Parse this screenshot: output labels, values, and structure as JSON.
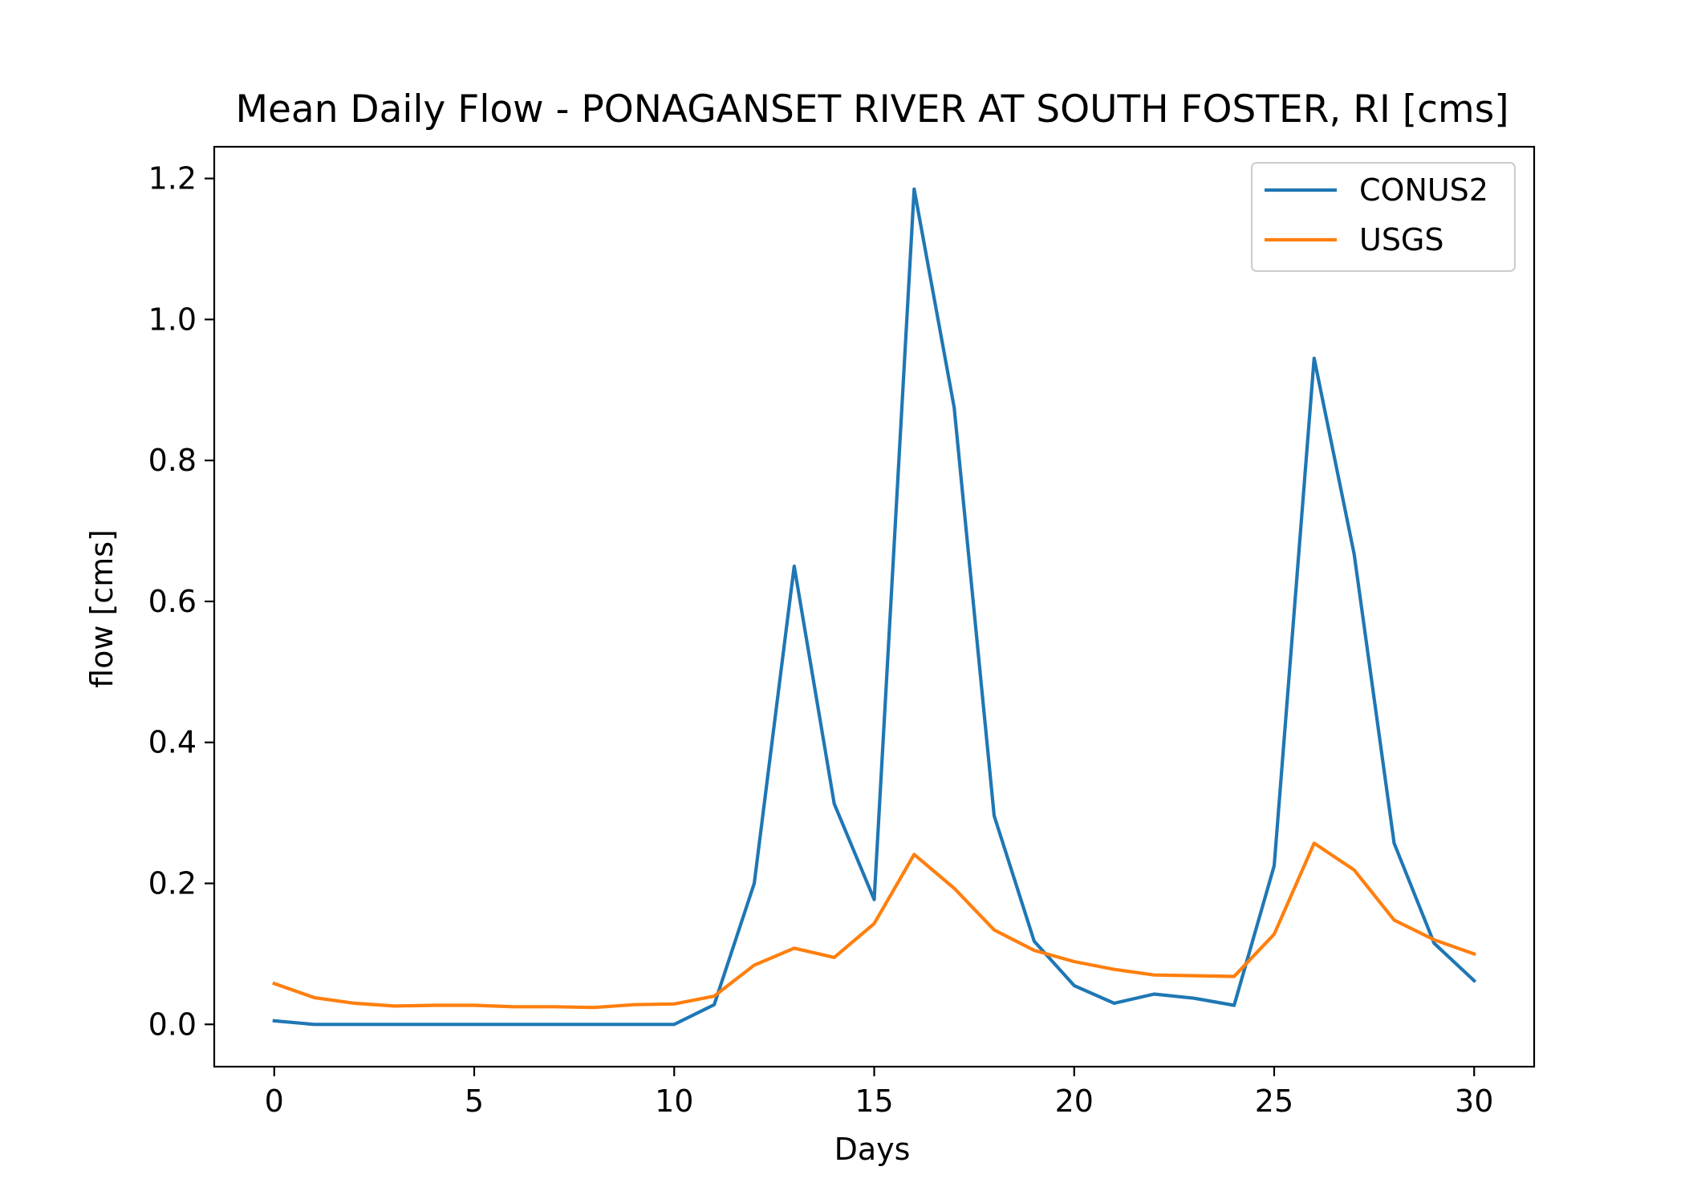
{
  "chart_data": {
    "type": "line",
    "title": "Mean Daily Flow - PONAGANSET RIVER AT SOUTH FOSTER, RI [cms]",
    "xlabel": "Days",
    "ylabel": "flow [cms]",
    "xlim": [
      -1.5,
      31.5
    ],
    "ylim": [
      -0.06,
      1.245
    ],
    "xticks": [
      0,
      5,
      10,
      15,
      20,
      25,
      30
    ],
    "xtick_labels": [
      "0",
      "5",
      "10",
      "15",
      "20",
      "25",
      "30"
    ],
    "yticks": [
      0.0,
      0.2,
      0.4,
      0.6,
      0.8,
      1.0,
      1.2
    ],
    "ytick_labels": [
      "0.0",
      "0.2",
      "0.4",
      "0.6",
      "0.8",
      "1.0",
      "1.2"
    ],
    "grid": false,
    "legend_position": "top-right",
    "x": [
      0,
      1,
      2,
      3,
      4,
      5,
      6,
      7,
      8,
      9,
      10,
      11,
      12,
      13,
      14,
      15,
      16,
      17,
      18,
      19,
      20,
      21,
      22,
      23,
      24,
      25,
      26,
      27,
      28,
      29,
      30
    ],
    "series": [
      {
        "name": "CONUS2",
        "color": "#1f77b4",
        "values": [
          0.005,
          0.0,
          0.0,
          0.0,
          0.0,
          0.0,
          0.0,
          0.0,
          0.0,
          0.0,
          0.0,
          0.028,
          0.2,
          0.65,
          0.313,
          0.177,
          1.185,
          0.875,
          0.296,
          0.118,
          0.055,
          0.03,
          0.043,
          0.037,
          0.027,
          0.225,
          0.945,
          0.667,
          0.257,
          0.115,
          0.062
        ]
      },
      {
        "name": "USGS",
        "color": "#ff7f0e",
        "values": [
          0.058,
          0.038,
          0.03,
          0.026,
          0.027,
          0.027,
          0.025,
          0.025,
          0.024,
          0.028,
          0.029,
          0.04,
          0.084,
          0.108,
          0.095,
          0.143,
          0.241,
          0.193,
          0.134,
          0.105,
          0.089,
          0.078,
          0.07,
          0.069,
          0.068,
          0.128,
          0.257,
          0.219,
          0.148,
          0.12,
          0.1
        ]
      }
    ]
  }
}
